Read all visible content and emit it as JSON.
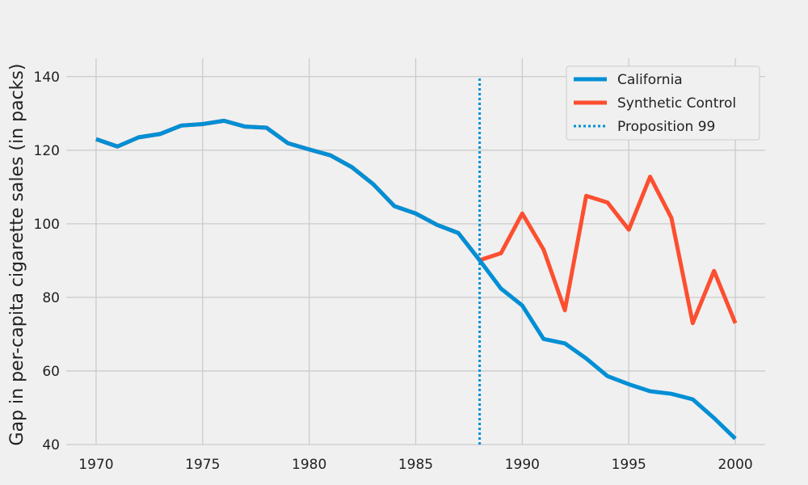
{
  "chart_data": {
    "type": "line",
    "title": "",
    "xlabel": "",
    "ylabel": "Gap in per-capita cigarette sales (in packs)",
    "xlim": [
      1968.6,
      2001.4
    ],
    "ylim": [
      40,
      145
    ],
    "xticks": [
      1970,
      1975,
      1980,
      1985,
      1990,
      1995,
      2000
    ],
    "yticks": [
      40,
      60,
      80,
      100,
      120,
      140
    ],
    "x": [
      1970,
      1971,
      1972,
      1973,
      1974,
      1975,
      1976,
      1977,
      1978,
      1979,
      1980,
      1981,
      1982,
      1983,
      1984,
      1985,
      1986,
      1987,
      1988,
      1989,
      1990,
      1991,
      1992,
      1993,
      1994,
      1995,
      1996,
      1997,
      1998,
      1999,
      2000
    ],
    "series": [
      {
        "name": "California",
        "color": "#008fd5",
        "values": [
          123.0,
          121.0,
          123.5,
          124.4,
          126.7,
          127.1,
          128.0,
          126.4,
          126.1,
          121.9,
          120.2,
          118.6,
          115.4,
          110.8,
          104.8,
          102.8,
          99.7,
          97.5,
          90.1,
          82.4,
          77.8,
          68.7,
          67.5,
          63.4,
          58.6,
          56.4,
          54.5,
          53.8,
          52.3,
          47.2,
          41.6
        ]
      },
      {
        "name": "Synthetic Control",
        "color": "#fc4f30",
        "values": [
          123.0,
          121.0,
          123.5,
          124.4,
          126.7,
          127.1,
          128.0,
          126.4,
          126.1,
          121.9,
          120.2,
          118.6,
          115.4,
          110.8,
          104.8,
          102.8,
          99.7,
          97.5,
          90.1,
          92.0,
          102.8,
          93.0,
          76.5,
          107.6,
          105.8,
          98.4,
          112.8,
          101.6,
          73.0,
          87.2,
          73.0
        ]
      }
    ],
    "vline": {
      "name": "Proposition 99",
      "x": 1988,
      "ymin": 40,
      "ymax": 140,
      "color": "#008fd5",
      "style": "dotted"
    },
    "legend": {
      "position": "top-right",
      "entries": [
        "California",
        "Synthetic Control",
        "Proposition 99"
      ]
    },
    "grid": true
  }
}
